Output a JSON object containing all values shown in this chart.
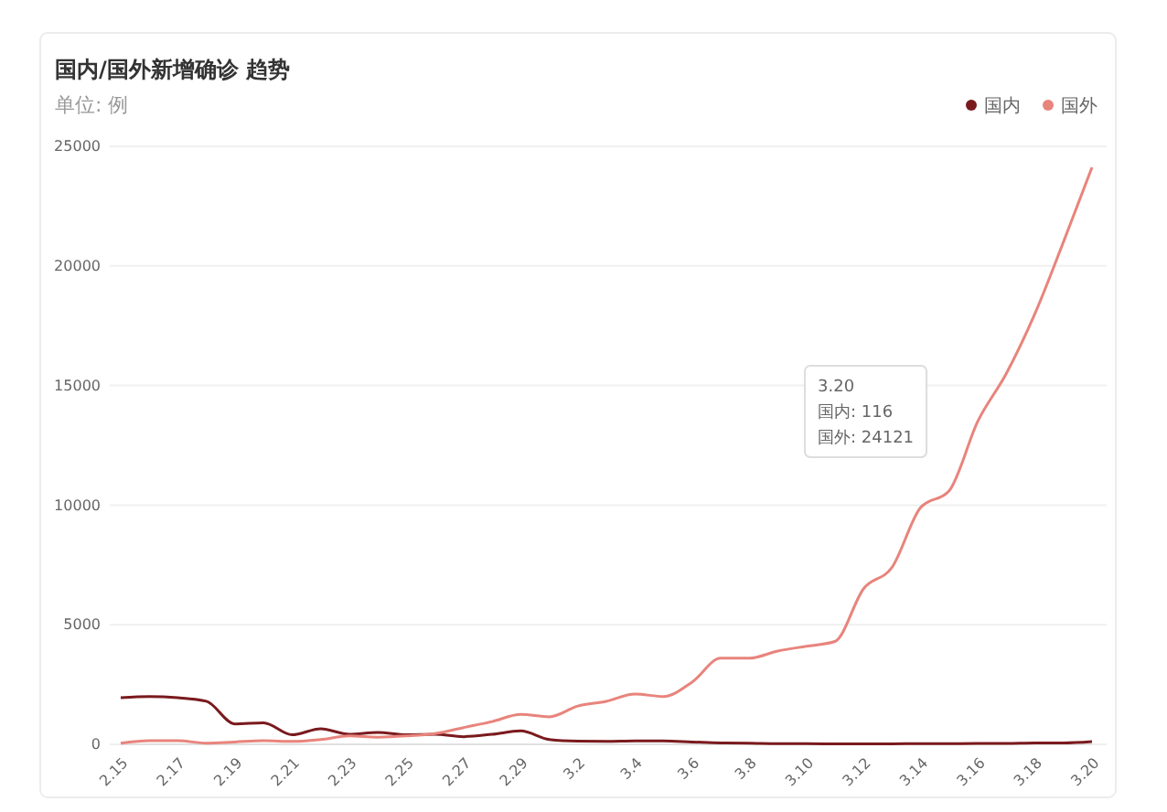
{
  "chart_data": {
    "type": "line",
    "title": "国内/国外新增确诊 趋势",
    "subtitle": "单位: 例",
    "categories": [
      "2.15",
      null,
      "2.17",
      null,
      "2.19",
      null,
      "2.21",
      null,
      "2.23",
      null,
      "2.25",
      null,
      "2.27",
      null,
      "2.29",
      null,
      "3.2",
      null,
      "3.4",
      null,
      "3.6",
      null,
      "3.8",
      null,
      "3.10",
      null,
      "3.12",
      null,
      "3.14",
      null,
      "3.16",
      null,
      "3.18",
      null,
      "3.20"
    ],
    "series": [
      {
        "name": "国内",
        "color": "#7a1a1e",
        "values": [
          1950,
          2000,
          1950,
          1800,
          850,
          900,
          400,
          650,
          420,
          500,
          400,
          420,
          320,
          420,
          560,
          200,
          130,
          120,
          140,
          140,
          100,
          60,
          50,
          30,
          30,
          20,
          20,
          20,
          30,
          30,
          40,
          40,
          60,
          60,
          116
        ]
      },
      {
        "name": "国外",
        "color": "#e8847c",
        "values": [
          50,
          150,
          150,
          50,
          100,
          150,
          120,
          200,
          350,
          300,
          350,
          450,
          700,
          950,
          1250,
          1150,
          1600,
          1800,
          2100,
          2000,
          2600,
          3600,
          3600,
          3900,
          4100,
          4300,
          6500,
          7400,
          9900,
          10600,
          13500,
          15500,
          18000,
          21000,
          24121
        ]
      }
    ],
    "ylim": [
      0,
      25000
    ],
    "yticks": [
      0,
      5000,
      10000,
      15000,
      20000,
      25000
    ],
    "grid": "y",
    "legend": "top right",
    "marker": "none",
    "line_style": "solid",
    "annotations": [
      "3.20",
      "国内: 116",
      "国外: 24121"
    ]
  }
}
